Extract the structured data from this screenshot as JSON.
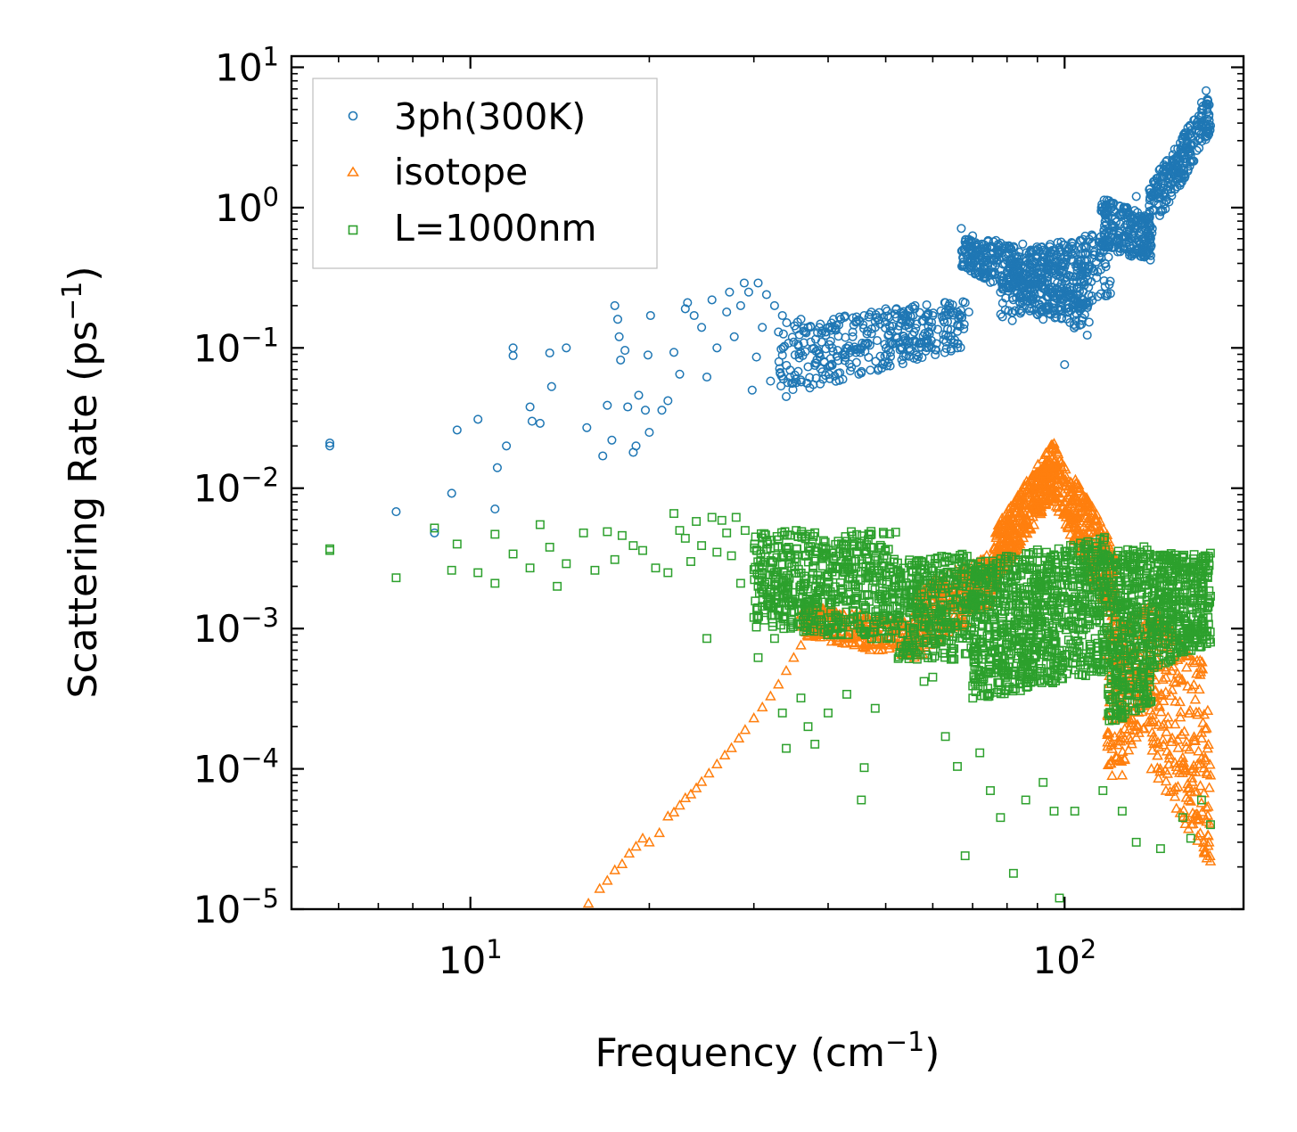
{
  "chart_data": {
    "type": "scatter",
    "xscale": "log",
    "yscale": "log",
    "xlabel": {
      "main": "Frequency (cm",
      "sup": "−1",
      "tail": ")"
    },
    "ylabel": {
      "main": "Scattering Rate (ps",
      "sup": "−1",
      "tail": ")"
    },
    "xlim": [
      5.0,
      200.0
    ],
    "ylim": [
      1e-05,
      12.0
    ],
    "x_ticks": [
      {
        "value": 10,
        "base": "10",
        "exp": "1"
      },
      {
        "value": 100,
        "base": "10",
        "exp": "2"
      }
    ],
    "y_ticks": [
      {
        "value": 10,
        "base": "10",
        "exp": "1"
      },
      {
        "value": 1,
        "base": "10",
        "exp": "0"
      },
      {
        "value": 0.1,
        "base": "10",
        "exp": "−1"
      },
      {
        "value": 0.01,
        "base": "10",
        "exp": "−2"
      },
      {
        "value": 0.001,
        "base": "10",
        "exp": "−3"
      },
      {
        "value": 0.0001,
        "base": "10",
        "exp": "−4"
      },
      {
        "value": 1e-05,
        "base": "10",
        "exp": "−5"
      }
    ],
    "legend_position": "top-left",
    "series": [
      {
        "name": "3ph(300K)",
        "marker": "circle",
        "color": "#1f77b4",
        "points": [
          [
            5.8,
            0.021
          ],
          [
            5.8,
            0.02
          ],
          [
            7.5,
            0.0068
          ],
          [
            8.7,
            0.0048
          ],
          [
            9.3,
            0.0092
          ],
          [
            9.5,
            0.026
          ],
          [
            10.3,
            0.031
          ],
          [
            11.0,
            0.0071
          ],
          [
            11.1,
            0.014
          ],
          [
            11.5,
            0.02
          ],
          [
            11.8,
            0.1
          ],
          [
            11.8,
            0.088
          ],
          [
            12.6,
            0.038
          ],
          [
            12.7,
            0.03
          ],
          [
            13.1,
            0.029
          ],
          [
            13.6,
            0.092
          ],
          [
            13.7,
            0.053
          ],
          [
            14.5,
            0.1
          ],
          [
            15.7,
            0.027
          ],
          [
            16.7,
            0.017
          ],
          [
            17.0,
            0.039
          ],
          [
            17.3,
            0.022
          ],
          [
            17.5,
            0.2
          ],
          [
            17.7,
            0.16
          ],
          [
            17.8,
            0.12
          ],
          [
            17.9,
            0.082
          ],
          [
            18.2,
            0.096
          ],
          [
            18.4,
            0.038
          ],
          [
            18.8,
            0.018
          ],
          [
            19.0,
            0.02
          ],
          [
            19.2,
            0.046
          ],
          [
            19.7,
            0.036
          ],
          [
            19.9,
            0.089
          ],
          [
            20.0,
            0.025
          ],
          [
            20.1,
            0.17
          ],
          [
            21.0,
            0.036
          ],
          [
            21.5,
            0.042
          ],
          [
            22.0,
            0.093
          ],
          [
            22.5,
            0.065
          ],
          [
            23.0,
            0.19
          ],
          [
            23.2,
            0.21
          ],
          [
            23.8,
            0.17
          ],
          [
            24.5,
            0.14
          ],
          [
            25.0,
            0.062
          ],
          [
            25.5,
            0.22
          ],
          [
            26.0,
            0.1
          ],
          [
            27.0,
            0.18
          ],
          [
            27.3,
            0.25
          ],
          [
            27.8,
            0.12
          ],
          [
            28.5,
            0.2
          ],
          [
            28.9,
            0.29
          ],
          [
            29.4,
            0.25
          ],
          [
            29.8,
            0.05
          ],
          [
            30.3,
            0.086
          ],
          [
            30.5,
            0.29
          ],
          [
            31.0,
            0.14
          ],
          [
            31.5,
            0.24
          ],
          [
            32.0,
            0.058
          ],
          [
            32.5,
            0.2
          ],
          [
            33.0,
            0.13
          ],
          [
            33.5,
            0.17
          ],
          [
            34.0,
            0.045
          ],
          [
            35.0,
            0.11
          ],
          [
            36.0,
            0.16
          ],
          [
            37.0,
            0.14
          ],
          [
            38.0,
            0.075
          ],
          [
            39.0,
            0.11
          ],
          [
            40.0,
            0.14
          ],
          [
            42.0,
            0.16
          ],
          [
            44.0,
            0.12
          ],
          [
            46.0,
            0.17
          ],
          [
            48.0,
            0.14
          ],
          [
            50.0,
            0.19
          ],
          [
            53.0,
            0.15
          ],
          [
            56.0,
            0.2
          ],
          [
            60.0,
            0.17
          ],
          [
            63.0,
            0.21
          ],
          [
            66.0,
            0.18
          ],
          [
            68.0,
            0.21
          ],
          [
            69.0,
            0.18
          ],
          [
            66.0,
            0.1
          ],
          [
            67.0,
            0.71
          ],
          [
            70.0,
            0.63
          ],
          [
            74.0,
            0.52
          ],
          [
            76.0,
            0.42
          ],
          [
            80.0,
            0.34
          ],
          [
            85.0,
            0.55
          ],
          [
            88.0,
            0.28
          ],
          [
            92.0,
            0.16
          ],
          [
            96.0,
            0.34
          ],
          [
            98.0,
            0.52
          ],
          [
            100.0,
            0.076
          ],
          [
            104.0,
            0.22
          ],
          [
            108.0,
            0.42
          ],
          [
            112.0,
            0.55
          ],
          [
            115.0,
            0.62
          ],
          [
            120.0,
            1.0
          ],
          [
            126.0,
            0.72
          ],
          [
            132.0,
            1.2
          ],
          [
            138.0,
            0.62
          ],
          [
            142.0,
            1.3
          ],
          [
            148.0,
            1.8
          ],
          [
            155.0,
            2.2
          ],
          [
            160.0,
            3.4
          ],
          [
            165.0,
            4.2
          ],
          [
            170.0,
            5.6
          ],
          [
            173.0,
            6.8
          ],
          [
            175.0,
            4.6
          ]
        ],
        "bands": [
          {
            "x0": 33.0,
            "x1": 68.0,
            "ylo0": 0.045,
            "yhi0": 0.15,
            "ylo1": 0.1,
            "yhi1": 0.22,
            "n": 360
          },
          {
            "x0": 67.0,
            "x1": 110.0,
            "ylo0": 0.38,
            "yhi0": 0.62,
            "ylo1": 0.12,
            "yhi1": 0.5,
            "n": 420
          },
          {
            "x0": 78.0,
            "x1": 120.0,
            "ylo0": 0.15,
            "yhi0": 0.45,
            "ylo1": 0.22,
            "yhi1": 0.7,
            "n": 280
          },
          {
            "x0": 115.0,
            "x1": 140.0,
            "ylo0": 0.5,
            "yhi0": 1.2,
            "ylo1": 0.42,
            "yhi1": 0.85,
            "n": 220
          },
          {
            "x0": 138.0,
            "x1": 176.0,
            "ylo0": 0.55,
            "yhi0": 1.4,
            "ylo1": 3.5,
            "yhi1": 6.5,
            "n": 240
          }
        ]
      },
      {
        "name": "isotope",
        "marker": "triangle",
        "color": "#ff7f0e",
        "points": [
          [
            15.8,
            1.1e-05
          ],
          [
            16.5,
            1.4e-05
          ],
          [
            17.0,
            1.6e-05
          ],
          [
            17.5,
            1.9e-05
          ],
          [
            18.0,
            2.1e-05
          ],
          [
            18.5,
            2.5e-05
          ],
          [
            19.0,
            2.8e-05
          ],
          [
            19.5,
            3.2e-05
          ],
          [
            20.0,
            3e-05
          ],
          [
            20.8,
            3.5e-05
          ],
          [
            21.5,
            4.6e-05
          ],
          [
            22.0,
            4.9e-05
          ],
          [
            22.5,
            5.5e-05
          ],
          [
            23.0,
            6.2e-05
          ],
          [
            23.5,
            6.6e-05
          ],
          [
            24.0,
            7.3e-05
          ],
          [
            24.5,
            8.1e-05
          ],
          [
            25.2,
            9.3e-05
          ],
          [
            26.0,
            0.000108
          ],
          [
            26.8,
            0.000125
          ],
          [
            27.5,
            0.000141
          ],
          [
            28.3,
            0.000165
          ],
          [
            29.0,
            0.00019
          ],
          [
            30.0,
            0.00023
          ],
          [
            31.0,
            0.000275
          ],
          [
            32.0,
            0.00033
          ],
          [
            33.0,
            0.0004
          ],
          [
            34.0,
            0.0005
          ],
          [
            35.0,
            0.00062
          ],
          [
            36.0,
            0.00076
          ],
          [
            37.0,
            0.00088
          ],
          [
            38.0,
            0.00099
          ],
          [
            176.0,
            2.2e-05
          ],
          [
            175.0,
            3e-05
          ],
          [
            174.0,
            0.00014
          ],
          [
            176.0,
            9e-05
          ],
          [
            125.0,
            9e-05
          ],
          [
            140.0,
            0.0001
          ],
          [
            158.0,
            0.00012
          ]
        ],
        "bands": [
          {
            "x0": 36.0,
            "x1": 56.0,
            "ylo0": 0.0009,
            "yhi0": 0.0015,
            "ylo1": 0.0006,
            "yhi1": 0.0011,
            "n": 260
          },
          {
            "x0": 56.0,
            "x1": 76.0,
            "ylo0": 0.0006,
            "yhi0": 0.002,
            "ylo1": 0.0015,
            "yhi1": 0.0035,
            "n": 260
          },
          {
            "x0": 76.0,
            "x1": 96.0,
            "ylo0": 0.002,
            "yhi0": 0.005,
            "ylo1": 0.009,
            "yhi1": 0.022,
            "n": 360
          },
          {
            "x0": 96.0,
            "x1": 122.0,
            "ylo0": 0.008,
            "yhi0": 0.02,
            "ylo1": 0.001,
            "yhi1": 0.004,
            "n": 320
          },
          {
            "x0": 118.0,
            "x1": 140.0,
            "ylo0": 8e-05,
            "yhi0": 0.001,
            "ylo1": 0.0002,
            "yhi1": 0.0015,
            "n": 220
          },
          {
            "x0": 140.0,
            "x1": 176.0,
            "ylo0": 0.0001,
            "yhi0": 0.0015,
            "ylo1": 2e-05,
            "yhi1": 0.0005,
            "n": 240
          }
        ]
      },
      {
        "name": "L=1000nm",
        "marker": "square",
        "color": "#2ca02c",
        "points": [
          [
            5.8,
            0.0037
          ],
          [
            5.8,
            0.0036
          ],
          [
            7.5,
            0.0023
          ],
          [
            8.7,
            0.0052
          ],
          [
            9.5,
            0.004
          ],
          [
            9.3,
            0.0026
          ],
          [
            10.3,
            0.0025
          ],
          [
            11.0,
            0.0021
          ],
          [
            11.0,
            0.0047
          ],
          [
            11.8,
            0.0034
          ],
          [
            12.6,
            0.0027
          ],
          [
            13.1,
            0.0055
          ],
          [
            13.6,
            0.0038
          ],
          [
            14.0,
            0.002
          ],
          [
            14.5,
            0.0029
          ],
          [
            15.5,
            0.0048
          ],
          [
            16.2,
            0.0026
          ],
          [
            17.0,
            0.0049
          ],
          [
            17.5,
            0.0031
          ],
          [
            18.0,
            0.0046
          ],
          [
            18.8,
            0.0039
          ],
          [
            19.5,
            0.0036
          ],
          [
            20.5,
            0.0027
          ],
          [
            21.5,
            0.0025
          ],
          [
            22.0,
            0.0066
          ],
          [
            22.5,
            0.005
          ],
          [
            23.0,
            0.0044
          ],
          [
            23.5,
            0.003
          ],
          [
            24.0,
            0.0058
          ],
          [
            24.5,
            0.0039
          ],
          [
            25.0,
            0.00085
          ],
          [
            25.5,
            0.0062
          ],
          [
            26.0,
            0.0035
          ],
          [
            26.5,
            0.0059
          ],
          [
            27.0,
            0.0048
          ],
          [
            27.5,
            0.0033
          ],
          [
            28.0,
            0.0062
          ],
          [
            28.5,
            0.0021
          ],
          [
            29.0,
            0.005
          ],
          [
            30.0,
            0.0012
          ],
          [
            30.5,
            0.00062
          ],
          [
            31.0,
            0.004
          ],
          [
            32.0,
            0.0015
          ],
          [
            32.5,
            0.00085
          ],
          [
            33.5,
            0.00025
          ],
          [
            34.0,
            0.00014
          ],
          [
            36.0,
            0.00032
          ],
          [
            37.0,
            0.0002
          ],
          [
            38.0,
            0.00015
          ],
          [
            40.0,
            0.00025
          ],
          [
            43.0,
            0.00034
          ],
          [
            45.5,
            6e-05
          ],
          [
            46.0,
            0.000102
          ],
          [
            48.0,
            0.00027
          ],
          [
            50.0,
            0.0014
          ],
          [
            58.0,
            0.00042
          ],
          [
            60.0,
            0.00045
          ],
          [
            63.0,
            0.00017
          ],
          [
            66.0,
            0.000104
          ],
          [
            68.0,
            2.4e-05
          ],
          [
            72.0,
            0.00013
          ],
          [
            75.0,
            7e-05
          ],
          [
            78.0,
            4.5e-05
          ],
          [
            82.0,
            1.8e-05
          ],
          [
            86.0,
            6e-05
          ],
          [
            92.0,
            8e-05
          ],
          [
            96.0,
            5e-05
          ],
          [
            98.0,
            1.2e-05
          ],
          [
            104.0,
            5e-05
          ],
          [
            116.0,
            7e-05
          ],
          [
            125.0,
            5e-05
          ],
          [
            132.0,
            3e-05
          ],
          [
            145.0,
            2.7e-05
          ],
          [
            158.0,
            4.5e-05
          ],
          [
            163.0,
            3.2e-05
          ],
          [
            170.0,
            6e-05
          ],
          [
            176.0,
            4e-05
          ],
          [
            176.0,
            0.0008
          ],
          [
            176.0,
            0.0017
          ]
        ],
        "bands": [
          {
            "x0": 30.0,
            "x1": 52.0,
            "ylo0": 0.001,
            "yhi0": 0.005,
            "ylo1": 0.0008,
            "yhi1": 0.005,
            "n": 560
          },
          {
            "x0": 52.0,
            "x1": 70.0,
            "ylo0": 0.0006,
            "yhi0": 0.003,
            "ylo1": 0.0006,
            "yhi1": 0.0035,
            "n": 340
          },
          {
            "x0": 70.0,
            "x1": 118.0,
            "ylo0": 0.0003,
            "yhi0": 0.003,
            "ylo1": 0.0005,
            "yhi1": 0.0045,
            "n": 900
          },
          {
            "x0": 118.0,
            "x1": 140.0,
            "ylo0": 0.0002,
            "yhi0": 0.0035,
            "ylo1": 0.0003,
            "yhi1": 0.004,
            "n": 360
          },
          {
            "x0": 140.0,
            "x1": 176.0,
            "ylo0": 0.0005,
            "yhi0": 0.0035,
            "ylo1": 0.0008,
            "yhi1": 0.0035,
            "n": 380
          }
        ]
      }
    ]
  }
}
